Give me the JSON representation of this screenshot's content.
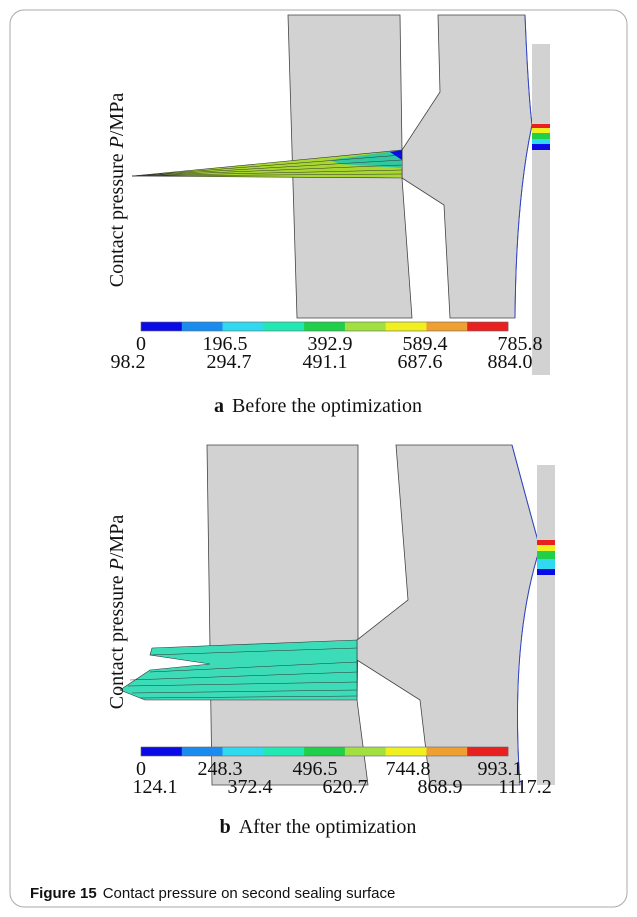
{
  "panels": [
    {
      "y_label": {
        "text": "Contact pressure ",
        "symbol": "P",
        "unit": "/MPa"
      },
      "colorbar": {
        "colors": [
          "#0a0ae6",
          "#1a8cf0",
          "#30d8f0",
          "#22e8b4",
          "#20d04a",
          "#a0e040",
          "#f0f020",
          "#f0a030",
          "#e82020"
        ],
        "labels": [
          "0",
          "98.2",
          "196.5",
          "294.7",
          "392.9",
          "491.1",
          "589.4",
          "687.6",
          "785.8",
          "884.0"
        ]
      },
      "caption": {
        "letter": "a",
        "text": "Before the optimization"
      }
    },
    {
      "y_label": {
        "text": "Contact pressure ",
        "symbol": "P",
        "unit": "/MPa"
      },
      "colorbar": {
        "colors": [
          "#0a0ae6",
          "#1a8cf0",
          "#30d8f0",
          "#22e8b4",
          "#20d04a",
          "#a0e040",
          "#f0f020",
          "#f0a030",
          "#e82020"
        ],
        "labels": [
          "0",
          "124.1",
          "248.3",
          "372.4",
          "496.5",
          "620.7",
          "744.8",
          "868.9",
          "993.1",
          "1117.2"
        ]
      },
      "caption": {
        "letter": "b",
        "text": "After the optimization"
      }
    }
  ],
  "figure_caption": {
    "label": "Figure 15",
    "text": "Contact pressure on second sealing surface"
  }
}
